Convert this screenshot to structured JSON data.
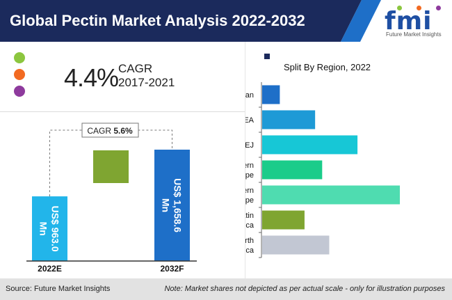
{
  "header": {
    "title": "Global Pectin Market Analysis 2022-2032",
    "logo_text": "fmi",
    "logo_subtext": "Future Market Insights"
  },
  "cagr_summary": {
    "value": "4.4%",
    "label": "CAGR",
    "period": "2017-2021",
    "dot_colors": [
      "#8cc63f",
      "#f26a21",
      "#8e3a9d"
    ]
  },
  "chart_data": [
    {
      "type": "bar",
      "orientation": "vertical",
      "categories": [
        "2022E",
        "2032F"
      ],
      "values": [
        963.0,
        1658.6
      ],
      "value_labels": [
        "US$ 963.0 Mn",
        "US$ 1,658.6 Mn"
      ],
      "colors": [
        "#22b5ea",
        "#1e6fc8"
      ],
      "growth_block_color": "#7fa531",
      "cagr_callout": {
        "label": "CAGR",
        "value": "5.6%"
      }
    },
    {
      "type": "bar",
      "orientation": "horizontal",
      "title": "Split By Region, 2022",
      "categories": [
        "Japan",
        "MEA",
        "APEJ",
        "Eastern Europe",
        "Western Europe",
        "Latin America",
        "North America"
      ],
      "category_lines": [
        [
          "Japan"
        ],
        [
          "MEA"
        ],
        [
          "APEJ"
        ],
        [
          "Eastern",
          "Europe"
        ],
        [
          "Western",
          "Europe"
        ],
        [
          "Latin",
          "Am erica"
        ],
        [
          "North",
          "Am erica"
        ]
      ],
      "values": [
        5,
        15,
        27,
        17,
        39,
        12,
        19
      ],
      "colors": [
        "#1e6fc8",
        "#1e9ad6",
        "#17c7d6",
        "#1bcc8a",
        "#4fdcb0",
        "#7fa531",
        "#c2c7d3"
      ]
    }
  ],
  "footer": {
    "source": "Source: Future Market Insights",
    "note": "Note: Market shares not depicted as per actual scale - only for illustration purposes"
  }
}
